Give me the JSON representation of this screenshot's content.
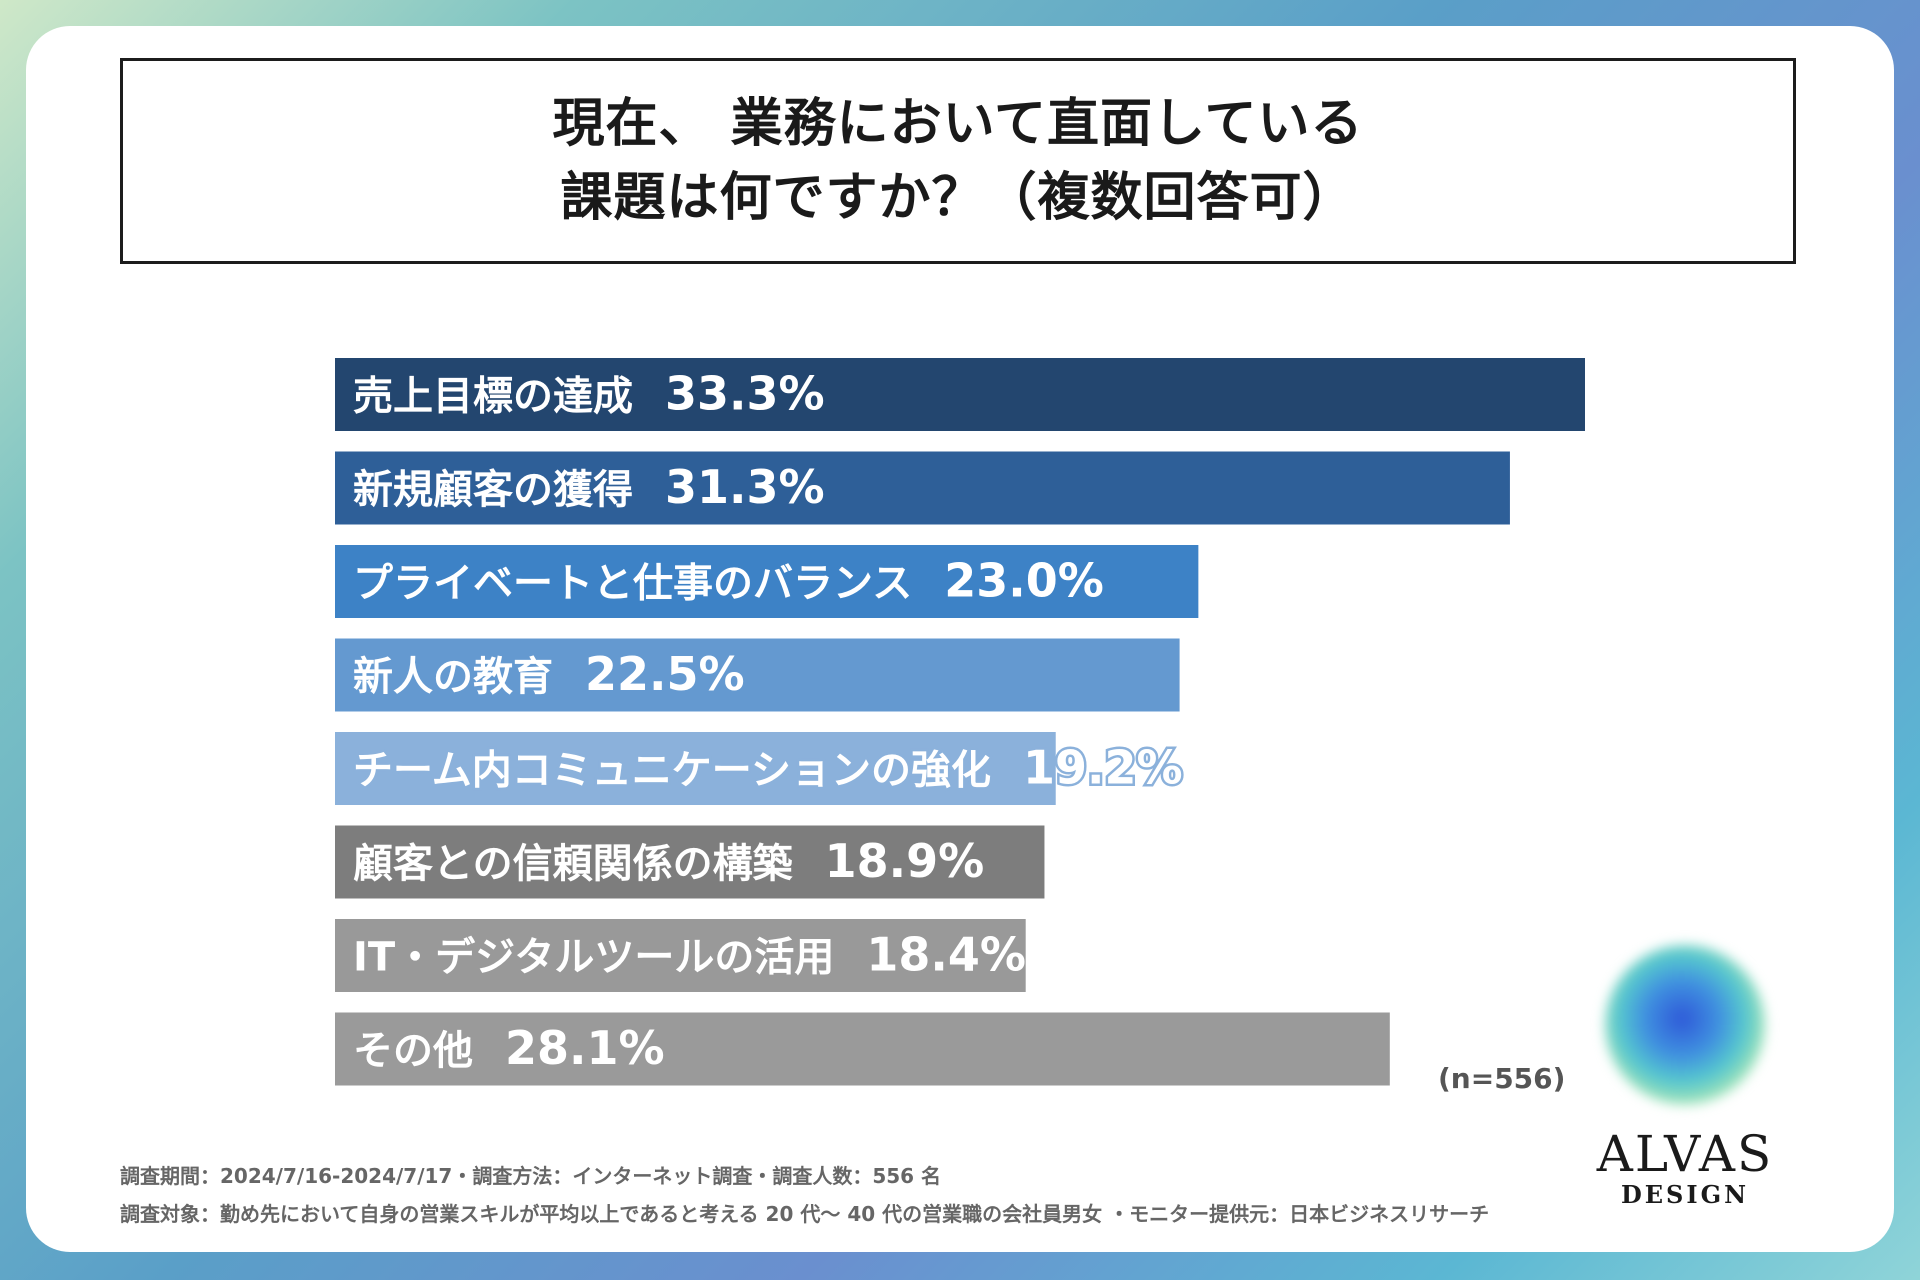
{
  "title": {
    "line1": "現在、 業務において直面している",
    "line2": "課題は何ですか？（複数回答可）"
  },
  "chart_data": {
    "type": "bar",
    "orientation": "horizontal",
    "categories": [
      "売上目標の達成",
      "新規顧客の獲得",
      "プライベートと仕事のバランス",
      "新人の教育",
      "チーム内コミュニケーションの強化",
      "顧客との信頼関係の構築",
      "IT・デジタルツールの活用",
      "その他"
    ],
    "values": [
      33.3,
      31.3,
      23.0,
      22.5,
      19.2,
      18.9,
      18.4,
      28.1
    ],
    "value_labels": [
      "33.3%",
      "31.3%",
      "23.0%",
      "22.5%",
      "19.2%",
      "18.9%",
      "18.4%",
      "28.1%"
    ],
    "colors": [
      "#23466f",
      "#2e5f98",
      "#3d82c6",
      "#6499d0",
      "#8bb1db",
      "#7d7d7d",
      "#999999",
      "#9a9a9a"
    ],
    "xlim": [
      0,
      33.3
    ]
  },
  "sample_size": "(n=556)",
  "footer": {
    "line1": "調査期間：2024/7/16-2024/7/17・調査方法：インターネット調査・調査人数：556 名",
    "line2": "調査対象：勤め先において自身の営業スキルが平均以上であると考える 20 代～ 40 代の営業職の会社員男女 ・モニター提供元：日本ビジネスリサーチ"
  },
  "logo": {
    "name": "ALVAS",
    "sub": "DESIGN"
  }
}
